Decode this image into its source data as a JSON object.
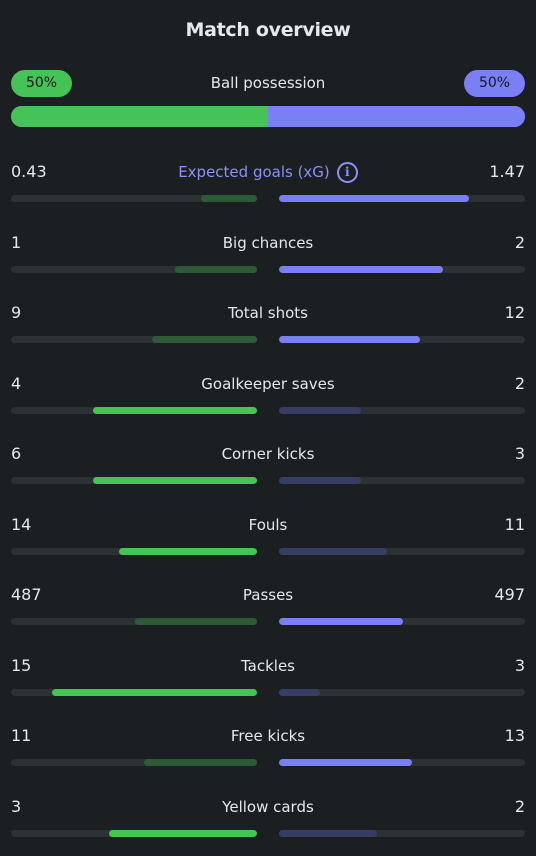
{
  "title": "Match overview",
  "possession": {
    "label": "Ball possession",
    "home": "50%",
    "away": "50%",
    "home_fraction": 0.5
  },
  "colors": {
    "home": "#46c356",
    "away": "#7b7ff6",
    "accent": "#8c90f8",
    "background": "#1b1f22"
  },
  "stats": [
    {
      "label": "Expected goals (xG)",
      "home": "0.43",
      "away": "1.47",
      "info_icon": "info-icon",
      "accent": true
    },
    {
      "label": "Big chances",
      "home": "1",
      "away": "2"
    },
    {
      "label": "Total shots",
      "home": "9",
      "away": "12"
    },
    {
      "label": "Goalkeeper saves",
      "home": "4",
      "away": "2"
    },
    {
      "label": "Corner kicks",
      "home": "6",
      "away": "3"
    },
    {
      "label": "Fouls",
      "home": "14",
      "away": "11"
    },
    {
      "label": "Passes",
      "home": "487",
      "away": "497"
    },
    {
      "label": "Tackles",
      "home": "15",
      "away": "3"
    },
    {
      "label": "Free kicks",
      "home": "11",
      "away": "13"
    },
    {
      "label": "Yellow cards",
      "home": "3",
      "away": "2"
    }
  ]
}
